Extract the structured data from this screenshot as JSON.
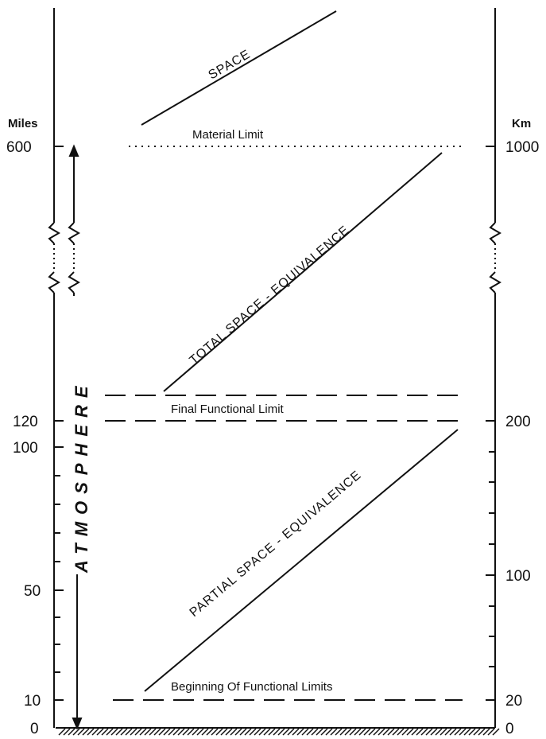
{
  "axes": {
    "left_unit": "Miles",
    "right_unit": "Km",
    "left_ticks": [
      "600",
      "120",
      "100",
      "50",
      "10",
      "0"
    ],
    "right_ticks": [
      "1000",
      "200",
      "100",
      "20",
      "0"
    ]
  },
  "limits": {
    "material": "Material Limit",
    "final_functional": "Final Functional Limit",
    "beginning_functional": "Beginning Of Functional Limits"
  },
  "regions": {
    "space": "SPACE",
    "total": "TOTAL SPACE - EQUIVALENCE",
    "partial": "PARTIAL SPACE - EQUIVALENCE",
    "atmosphere": "ATMOSPHERE"
  }
}
